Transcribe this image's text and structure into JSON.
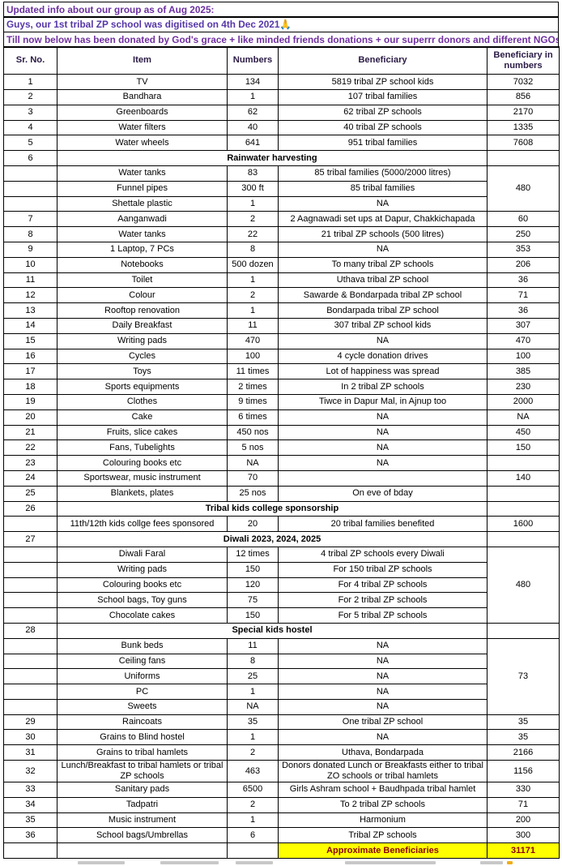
{
  "banners": [
    {
      "text": "Updated info about our group as of Aug 2025:",
      "color": "#6B2FA0"
    },
    {
      "text": "Guys, our 1st tribal ZP school was digitised on 4th Dec 2021🙏",
      "color": "#5536A8"
    },
    {
      "text": "Till now below has been donated by God's grace + like minded friends donations + our superrr donors and different NGOs",
      "color": "#7030A0"
    }
  ],
  "colors": {
    "border": "#000000",
    "header_text": "#2B1B45",
    "highlight_bg": "#FFFF00",
    "highlight_text": "#8B0000"
  },
  "table": {
    "headers": [
      "Sr. No.",
      "Item",
      "Numbers",
      "Beneficiary",
      "Beneficiary in numbers"
    ],
    "rows": [
      {
        "cells": [
          "1",
          "TV",
          "134",
          "5819 tribal ZP school kids",
          "7032"
        ]
      },
      {
        "cells": [
          "2",
          "Bandhara",
          "1",
          "107 tribal families",
          "856"
        ]
      },
      {
        "cells": [
          "3",
          "Greenboards",
          "62",
          "62 tribal ZP schools",
          "2170"
        ]
      },
      {
        "cells": [
          "4",
          "Water filters",
          "40",
          "40 tribal ZP schools",
          "1335"
        ]
      },
      {
        "cells": [
          "5",
          "Water wheels",
          "641",
          "951 tribal families",
          "7608"
        ]
      },
      {
        "cells": [
          "6",
          {
            "t": "Rainwater harvesting",
            "cs": 3,
            "b": true
          },
          ""
        ]
      },
      {
        "cells": [
          "",
          "Water tanks",
          "83",
          "85 tribal families (5000/2000 litres)",
          {
            "t": "480",
            "rs": 3
          }
        ]
      },
      {
        "cells": [
          "",
          "Funnel pipes",
          "300 ft",
          "85 tribal families"
        ]
      },
      {
        "cells": [
          "",
          "Shettale plastic",
          "1",
          "NA"
        ]
      },
      {
        "cells": [
          "7",
          "Aanganwadi",
          "2",
          "2 Aagnawadi set ups at Dapur, Chakkichapada",
          "60"
        ]
      },
      {
        "cells": [
          "8",
          "Water tanks",
          "22",
          "21 tribal ZP schools (500 litres)",
          "250"
        ]
      },
      {
        "cells": [
          "9",
          "1 Laptop, 7 PCs",
          "8",
          "NA",
          "353"
        ]
      },
      {
        "cells": [
          "10",
          "Notebooks",
          "500 dozen",
          "To many tribal ZP schools",
          "206"
        ]
      },
      {
        "cells": [
          "11",
          "Toilet",
          "1",
          "Uthava tribal ZP school",
          "36"
        ]
      },
      {
        "cells": [
          "12",
          "Colour",
          "2",
          "Sawarde & Bondarpada tribal ZP school",
          "71"
        ]
      },
      {
        "cells": [
          "13",
          "Rooftop renovation",
          "1",
          "Bondarpada tribal ZP school",
          "36"
        ]
      },
      {
        "cells": [
          "14",
          "Daily Breakfast",
          "11",
          "307 tribal ZP school kids",
          "307"
        ]
      },
      {
        "cells": [
          "15",
          "Writing pads",
          "470",
          "NA",
          "470"
        ]
      },
      {
        "cells": [
          "16",
          "Cycles",
          "100",
          "4 cycle donation drives",
          "100"
        ]
      },
      {
        "cells": [
          "17",
          "Toys",
          "11 times",
          "Lot of happiness was spread",
          "385"
        ]
      },
      {
        "cells": [
          "18",
          "Sports equipments",
          "2 times",
          "In 2 tribal ZP schools",
          "230"
        ]
      },
      {
        "cells": [
          "19",
          "Clothes",
          "9 times",
          "Tiwce in Dapur Mal, in Ajnup too",
          "2000"
        ]
      },
      {
        "cells": [
          "20",
          "Cake",
          "6 times",
          "NA",
          "NA"
        ]
      },
      {
        "cells": [
          "21",
          "Fruits, slice cakes",
          "450 nos",
          "NA",
          "450"
        ]
      },
      {
        "cells": [
          "22",
          "Fans, Tubelights",
          "5 nos",
          "NA",
          "150"
        ]
      },
      {
        "cells": [
          "23",
          "Colouring books etc",
          "NA",
          "NA",
          ""
        ]
      },
      {
        "cells": [
          "24",
          "Sportswear, music instrument",
          "70",
          "",
          "140"
        ]
      },
      {
        "cells": [
          "25",
          "Blankets, plates",
          "25 nos",
          "On eve of bday",
          ""
        ]
      },
      {
        "cells": [
          "26",
          {
            "t": "Tribal kids college sponsorship",
            "cs": 3,
            "b": true
          },
          ""
        ]
      },
      {
        "cells": [
          "",
          "11th/12th kids collge fees sponsored",
          "20",
          "20 tribal families benefited",
          "1600"
        ]
      },
      {
        "cells": [
          "27",
          {
            "t": "Diwali 2023, 2024, 2025",
            "cs": 3,
            "b": true
          },
          ""
        ]
      },
      {
        "cells": [
          "",
          "Diwali Faral",
          "12 times",
          "4 tribal ZP schools every Diwali",
          {
            "t": "480",
            "rs": 5
          }
        ]
      },
      {
        "cells": [
          "",
          "Writing pads",
          "150",
          "For 150 tribal ZP schools"
        ]
      },
      {
        "cells": [
          "",
          "Colouring books etc",
          "120",
          "For 4 tribal ZP schools"
        ]
      },
      {
        "cells": [
          "",
          "School bags, Toy guns",
          "75",
          "For 2 tribal ZP schools"
        ]
      },
      {
        "cells": [
          "",
          "Chocolate cakes",
          "150",
          "For 5 tribal ZP schools"
        ]
      },
      {
        "cells": [
          "28",
          {
            "t": "Special kids hostel",
            "cs": 3,
            "b": true
          },
          ""
        ]
      },
      {
        "cells": [
          "",
          "Bunk beds",
          "11",
          "NA",
          {
            "t": "73",
            "rs": 5
          }
        ]
      },
      {
        "cells": [
          "",
          "Ceiling fans",
          "8",
          "NA"
        ]
      },
      {
        "cells": [
          "",
          "Uniforms",
          "25",
          "NA"
        ]
      },
      {
        "cells": [
          "",
          "PC",
          "1",
          "NA"
        ]
      },
      {
        "cells": [
          "",
          "Sweets",
          "NA",
          "NA"
        ]
      },
      {
        "cells": [
          "29",
          "Raincoats",
          "35",
          "One tribal ZP school",
          "35"
        ]
      },
      {
        "cells": [
          "30",
          "Grains to Blind hostel",
          "1",
          "NA",
          "35"
        ]
      },
      {
        "cells": [
          "31",
          "Grains to tribal hamlets",
          "2",
          "Uthava, Bondarpada",
          "2166"
        ]
      },
      {
        "cells": [
          "32",
          "Lunch/Breakfast to tribal hamlets or tribal ZP schools",
          "463",
          "Donors donated Lunch or Breakfasts either to tribal ZO schools or tribal hamlets",
          "1156"
        ]
      },
      {
        "cells": [
          "33",
          "Sanitary pads",
          "6500",
          "Girls Ashram school + Baudhpada tribal hamlet",
          "330"
        ]
      },
      {
        "cells": [
          "34",
          "Tadpatri",
          "2",
          "To 2 tribal ZP schools",
          "71"
        ]
      },
      {
        "cells": [
          "35",
          "Music instrument",
          "1",
          "Harmonium",
          "200"
        ]
      },
      {
        "cells": [
          "36",
          "School bags/Umbrellas",
          "6",
          "Tribal ZP schools",
          "300"
        ]
      },
      {
        "cells": [
          "",
          "",
          "",
          {
            "t": "Approximate Beneficiaries",
            "b": true,
            "hl": true
          },
          {
            "t": "31171",
            "b": true,
            "hl": true
          }
        ]
      }
    ]
  }
}
